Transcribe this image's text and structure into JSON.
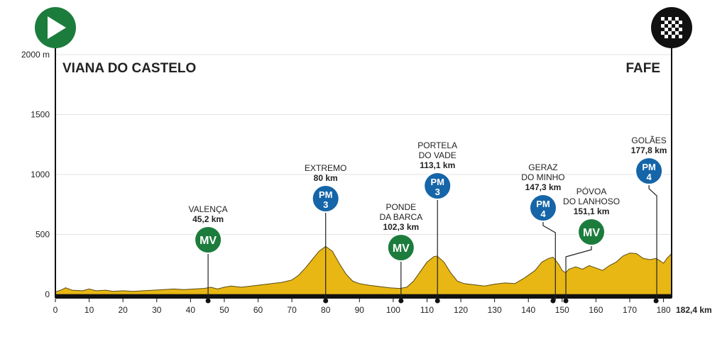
{
  "chart_data": {
    "type": "area",
    "y_unit_label": "2000 m",
    "y_ticks": [
      "2000 m",
      "1500",
      "1000",
      "500",
      "0"
    ],
    "y_tick_values": [
      2000,
      1500,
      1000,
      500,
      0
    ],
    "x_ticks": [
      0,
      10,
      20,
      30,
      40,
      50,
      60,
      70,
      80,
      90,
      100,
      110,
      120,
      130,
      140,
      150,
      160,
      170,
      180
    ],
    "x_total_label": "182,4 km",
    "xlim": [
      0,
      182.4
    ],
    "ylim": [
      0,
      2000
    ],
    "grid": true,
    "start_city": "VIANA DO CASTELO",
    "finish_city": "FAFE",
    "fill_color": "#e8b714",
    "profile": [
      [
        0,
        20
      ],
      [
        2,
        40
      ],
      [
        3,
        55
      ],
      [
        5,
        35
      ],
      [
        8,
        30
      ],
      [
        10,
        45
      ],
      [
        12,
        30
      ],
      [
        15,
        35
      ],
      [
        17,
        25
      ],
      [
        20,
        30
      ],
      [
        23,
        25
      ],
      [
        26,
        30
      ],
      [
        29,
        35
      ],
      [
        32,
        40
      ],
      [
        35,
        45
      ],
      [
        38,
        40
      ],
      [
        41,
        45
      ],
      [
        44,
        50
      ],
      [
        46,
        60
      ],
      [
        48,
        45
      ],
      [
        50,
        60
      ],
      [
        52,
        70
      ],
      [
        55,
        60
      ],
      [
        58,
        70
      ],
      [
        61,
        80
      ],
      [
        64,
        90
      ],
      [
        67,
        100
      ],
      [
        70,
        120
      ],
      [
        72,
        160
      ],
      [
        74,
        220
      ],
      [
        76,
        290
      ],
      [
        78,
        360
      ],
      [
        80,
        400
      ],
      [
        82,
        360
      ],
      [
        84,
        260
      ],
      [
        86,
        170
      ],
      [
        88,
        110
      ],
      [
        90,
        90
      ],
      [
        93,
        75
      ],
      [
        96,
        65
      ],
      [
        99,
        55
      ],
      [
        102,
        50
      ],
      [
        104,
        60
      ],
      [
        106,
        110
      ],
      [
        108,
        190
      ],
      [
        110,
        270
      ],
      [
        112,
        315
      ],
      [
        113,
        320
      ],
      [
        115,
        270
      ],
      [
        117,
        180
      ],
      [
        119,
        110
      ],
      [
        121,
        90
      ],
      [
        124,
        80
      ],
      [
        127,
        70
      ],
      [
        130,
        85
      ],
      [
        133,
        95
      ],
      [
        136,
        90
      ],
      [
        139,
        140
      ],
      [
        142,
        200
      ],
      [
        144,
        270
      ],
      [
        146,
        300
      ],
      [
        147.3,
        310
      ],
      [
        149,
        250
      ],
      [
        150,
        200
      ],
      [
        151,
        180
      ],
      [
        152,
        210
      ],
      [
        154,
        230
      ],
      [
        156,
        210
      ],
      [
        158,
        240
      ],
      [
        160,
        220
      ],
      [
        162,
        200
      ],
      [
        164,
        240
      ],
      [
        166,
        270
      ],
      [
        168,
        320
      ],
      [
        170,
        345
      ],
      [
        172,
        340
      ],
      [
        174,
        300
      ],
      [
        176,
        290
      ],
      [
        177.8,
        300
      ],
      [
        179,
        280
      ],
      [
        180,
        260
      ],
      [
        181,
        300
      ],
      [
        182.4,
        340
      ]
    ],
    "climbs": [
      {
        "name_lines": [
          "VALENÇA"
        ],
        "km_label": "45,2 km",
        "km": 45.2,
        "badge": [
          "MV"
        ],
        "badge_color": "#1c7c3c"
      },
      {
        "name_lines": [
          "EXTREMO"
        ],
        "km_label": "80 km",
        "km": 80,
        "badge": [
          "PM",
          "3"
        ],
        "badge_color": "#1565a8"
      },
      {
        "name_lines": [
          "PONDE",
          "DA BARCA"
        ],
        "km_label": "102,3 km",
        "km": 102.3,
        "badge": [
          "MV"
        ],
        "badge_color": "#1c7c3c"
      },
      {
        "name_lines": [
          "PORTELA",
          "DO VADE"
        ],
        "km_label": "113,1 km",
        "km": 113.1,
        "badge": [
          "PM",
          "3"
        ],
        "badge_color": "#1565a8"
      },
      {
        "name_lines": [
          "GERAZ",
          "DO MINHO"
        ],
        "km_label": "147,3 km",
        "km": 147.3,
        "badge": [
          "PM",
          "4"
        ],
        "badge_color": "#1565a8"
      },
      {
        "name_lines": [
          "PÓVOA",
          "DO LANHOSO"
        ],
        "km_label": "151,1 km",
        "km": 151.1,
        "badge": [
          "MV"
        ],
        "badge_color": "#1c7c3c"
      },
      {
        "name_lines": [
          "GOLÃES"
        ],
        "km_label": "177,8 km",
        "km": 177.8,
        "badge": [
          "PM",
          "4"
        ],
        "badge_color": "#1565a8"
      }
    ]
  }
}
